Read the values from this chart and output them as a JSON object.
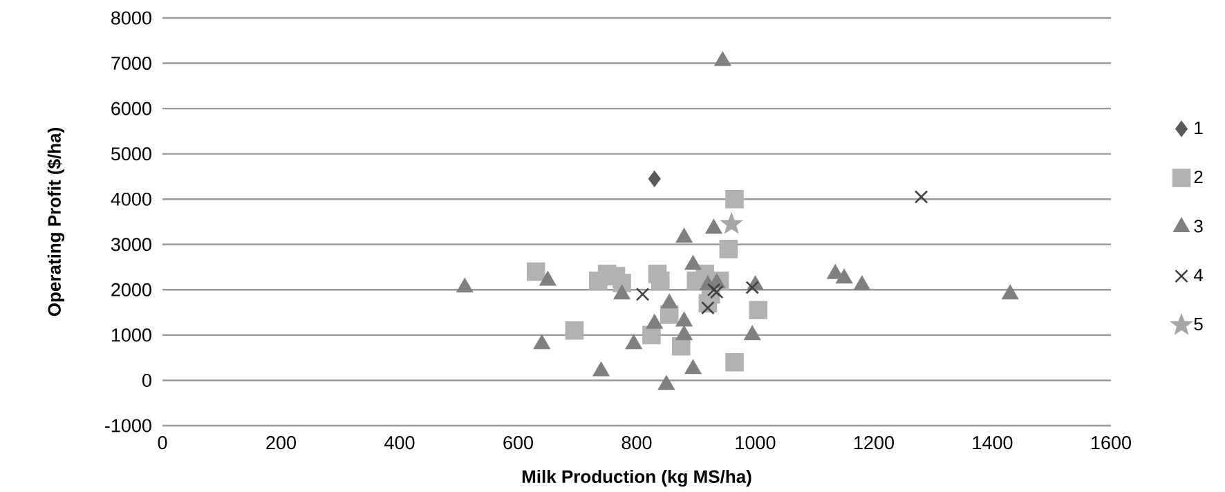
{
  "chart_data": {
    "type": "scatter",
    "xlabel": "Milk Production (kg MS/ha)",
    "ylabel": "Operating Profit ($/ha)",
    "xlim": [
      0,
      1600
    ],
    "xticks": [
      0,
      200,
      400,
      600,
      800,
      1000,
      1200,
      1400,
      1600
    ],
    "ylim": [
      -1000,
      8000
    ],
    "yticks": [
      -1000,
      0,
      1000,
      2000,
      3000,
      4000,
      5000,
      6000,
      7000,
      8000
    ],
    "grid": "y",
    "legend": "right",
    "series": [
      {
        "name": "1",
        "color": "#595959",
        "marker": "diamond",
        "x": [
          830
        ],
        "values": [
          4450
        ]
      },
      {
        "name": "2",
        "color": "#b2b2b2",
        "marker": "square",
        "x": [
          630,
          695,
          735,
          750,
          765,
          775,
          825,
          835,
          840,
          855,
          875,
          900,
          915,
          920,
          925,
          940,
          955,
          965,
          965,
          1005
        ],
        "values": [
          2400,
          1100,
          2200,
          2350,
          2300,
          2150,
          1000,
          2350,
          2200,
          1450,
          750,
          2200,
          2350,
          1700,
          1900,
          2200,
          2900,
          4000,
          400,
          1550
        ]
      },
      {
        "name": "3",
        "color": "#808080",
        "marker": "triangle",
        "x": [
          510,
          640,
          650,
          740,
          775,
          795,
          830,
          850,
          855,
          880,
          880,
          880,
          895,
          895,
          920,
          930,
          935,
          945,
          995,
          1000,
          1135,
          1150,
          1180,
          1430
        ],
        "values": [
          2050,
          800,
          2200,
          200,
          1900,
          800,
          1250,
          -100,
          1700,
          1300,
          1000,
          3150,
          2550,
          250,
          2100,
          3350,
          2150,
          7050,
          1000,
          2100,
          2350,
          2250,
          2100,
          1900
        ]
      },
      {
        "name": "4",
        "color": "#404040",
        "marker": "cross",
        "x": [
          810,
          920,
          930,
          935,
          995,
          1280
        ],
        "values": [
          1900,
          1600,
          2000,
          1950,
          2050,
          4050
        ]
      },
      {
        "name": "5",
        "color": "#a6a6a6",
        "marker": "star",
        "x": [
          960
        ],
        "values": [
          3450
        ]
      }
    ]
  }
}
